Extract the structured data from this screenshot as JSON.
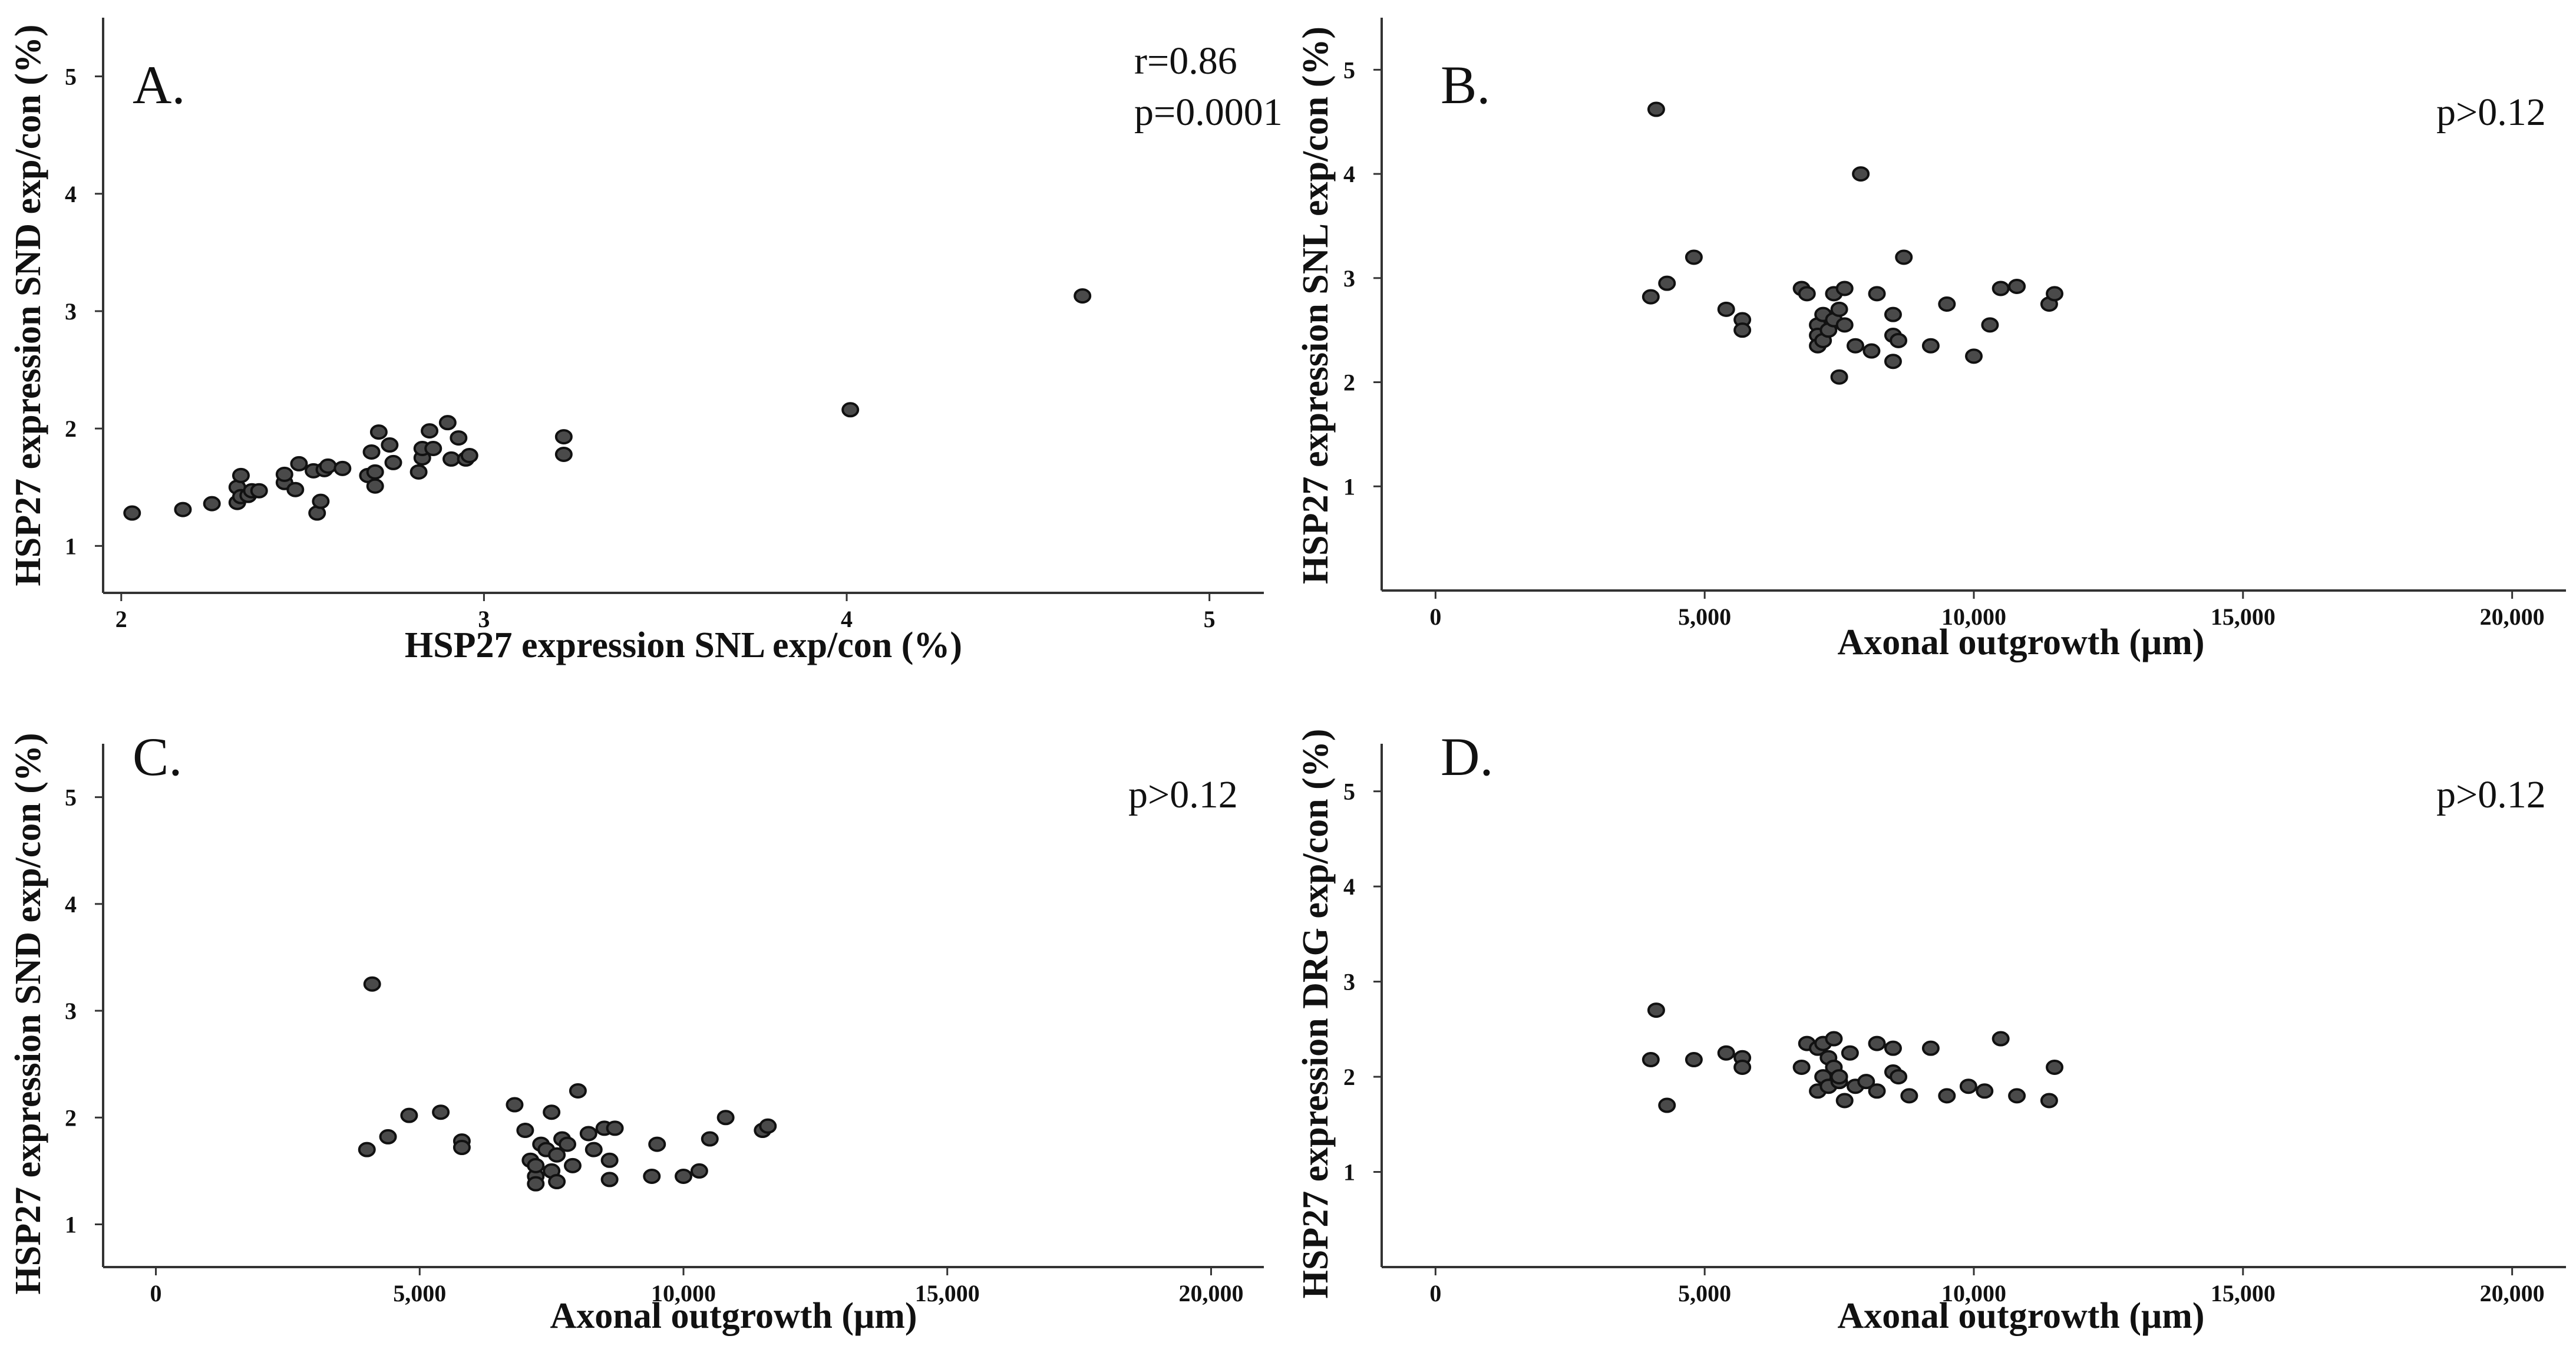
{
  "chart_data": [
    {
      "type": "scatter",
      "panel_label": "A.",
      "annotations": [
        "r=0.86",
        "p=0.0001"
      ],
      "xlabel": "HSP27 expression SNL exp/con (%)",
      "ylabel": "HSP27 expression SND exp/con (%)",
      "xlim": [
        1.95,
        5.15
      ],
      "ylim": [
        0.6,
        5.5
      ],
      "xticks": [
        2,
        3,
        4,
        5
      ],
      "xtick_labels": [
        "2",
        "3",
        "4",
        "5"
      ],
      "yticks": [
        1,
        2,
        3,
        4,
        5
      ],
      "ytick_labels": [
        "1",
        "2",
        "3",
        "4",
        "5"
      ],
      "points": [
        [
          2.03,
          1.28
        ],
        [
          2.17,
          1.31
        ],
        [
          2.25,
          1.36
        ],
        [
          2.32,
          1.37
        ],
        [
          2.32,
          1.5
        ],
        [
          2.33,
          1.42
        ],
        [
          2.33,
          1.6
        ],
        [
          2.35,
          1.43
        ],
        [
          2.36,
          1.47
        ],
        [
          2.38,
          1.47
        ],
        [
          2.45,
          1.54
        ],
        [
          2.45,
          1.61
        ],
        [
          2.48,
          1.48
        ],
        [
          2.49,
          1.7
        ],
        [
          2.53,
          1.64
        ],
        [
          2.54,
          1.28
        ],
        [
          2.55,
          1.38
        ],
        [
          2.56,
          1.65
        ],
        [
          2.57,
          1.68
        ],
        [
          2.61,
          1.66
        ],
        [
          2.68,
          1.6
        ],
        [
          2.69,
          1.8
        ],
        [
          2.7,
          1.51
        ],
        [
          2.7,
          1.63
        ],
        [
          2.71,
          1.97
        ],
        [
          2.74,
          1.86
        ],
        [
          2.75,
          1.71
        ],
        [
          2.82,
          1.63
        ],
        [
          2.83,
          1.75
        ],
        [
          2.83,
          1.83
        ],
        [
          2.85,
          1.98
        ],
        [
          2.86,
          1.83
        ],
        [
          2.9,
          2.05
        ],
        [
          2.91,
          1.74
        ],
        [
          2.93,
          1.92
        ],
        [
          2.95,
          1.74
        ],
        [
          2.96,
          1.77
        ],
        [
          3.22,
          1.78
        ],
        [
          3.22,
          1.93
        ],
        [
          4.01,
          2.16
        ],
        [
          4.65,
          3.13
        ]
      ]
    },
    {
      "type": "scatter",
      "panel_label": "B.",
      "annotations": [
        "p>0.12"
      ],
      "xlabel": "Axonal outgrowth (μm)",
      "ylabel": "HSP27 expression SNL exp/con (%)",
      "xlim": [
        -1000,
        21000
      ],
      "ylim": [
        0,
        5.5
      ],
      "xticks": [
        0,
        5000,
        10000,
        15000,
        20000
      ],
      "xtick_labels": [
        "0",
        "5,000",
        "10,000",
        "15,000",
        "20,000"
      ],
      "yticks": [
        1,
        2,
        3,
        4,
        5
      ],
      "ytick_labels": [
        "1",
        "2",
        "3",
        "4",
        "5"
      ],
      "points": [
        [
          4000,
          2.82
        ],
        [
          4100,
          4.62
        ],
        [
          4300,
          2.95
        ],
        [
          4800,
          3.2
        ],
        [
          5400,
          2.7
        ],
        [
          5700,
          2.6
        ],
        [
          5700,
          2.5
        ],
        [
          6800,
          2.9
        ],
        [
          6900,
          2.85
        ],
        [
          7100,
          2.55
        ],
        [
          7100,
          2.45
        ],
        [
          7100,
          2.35
        ],
        [
          7200,
          2.65
        ],
        [
          7200,
          2.4
        ],
        [
          7300,
          2.5
        ],
        [
          7400,
          2.85
        ],
        [
          7400,
          2.6
        ],
        [
          7500,
          2.05
        ],
        [
          7500,
          2.7
        ],
        [
          7600,
          2.55
        ],
        [
          7600,
          2.9
        ],
        [
          7800,
          2.35
        ],
        [
          7900,
          4.0
        ],
        [
          8100,
          2.3
        ],
        [
          8200,
          2.85
        ],
        [
          8500,
          2.65
        ],
        [
          8500,
          2.45
        ],
        [
          8500,
          2.2
        ],
        [
          8600,
          2.4
        ],
        [
          8700,
          3.2
        ],
        [
          9200,
          2.35
        ],
        [
          9500,
          2.75
        ],
        [
          10000,
          2.25
        ],
        [
          10300,
          2.55
        ],
        [
          10500,
          2.9
        ],
        [
          10800,
          2.92
        ],
        [
          11400,
          2.75
        ],
        [
          11500,
          2.85
        ]
      ]
    },
    {
      "type": "scatter",
      "panel_label": "C.",
      "annotations": [
        "p>0.12"
      ],
      "xlabel": "Axonal outgrowth (μm)",
      "ylabel": "HSP27 expression SND exp/con (%)",
      "xlim": [
        -1000,
        21000
      ],
      "ylim": [
        0.6,
        5.5
      ],
      "xticks": [
        0,
        5000,
        10000,
        15000,
        20000
      ],
      "xtick_labels": [
        "0",
        "5,000",
        "10,000",
        "15,000",
        "20,000"
      ],
      "yticks": [
        1,
        2,
        3,
        4,
        5
      ],
      "ytick_labels": [
        "1",
        "2",
        "3",
        "4",
        "5"
      ],
      "points": [
        [
          4000,
          1.7
        ],
        [
          4100,
          3.25
        ],
        [
          4400,
          1.82
        ],
        [
          4800,
          2.02
        ],
        [
          5400,
          2.05
        ],
        [
          5800,
          1.78
        ],
        [
          5800,
          1.72
        ],
        [
          6800,
          2.12
        ],
        [
          7000,
          1.88
        ],
        [
          7100,
          1.6
        ],
        [
          7200,
          1.45
        ],
        [
          7200,
          1.55
        ],
        [
          7200,
          1.38
        ],
        [
          7300,
          1.75
        ],
        [
          7400,
          1.7
        ],
        [
          7500,
          1.5
        ],
        [
          7500,
          2.05
        ],
        [
          7600,
          1.65
        ],
        [
          7600,
          1.4
        ],
        [
          7700,
          1.8
        ],
        [
          7800,
          1.75
        ],
        [
          7900,
          1.55
        ],
        [
          8000,
          2.25
        ],
        [
          8200,
          1.85
        ],
        [
          8300,
          1.7
        ],
        [
          8500,
          1.9
        ],
        [
          8600,
          1.6
        ],
        [
          8600,
          1.42
        ],
        [
          8700,
          1.9
        ],
        [
          9400,
          1.45
        ],
        [
          9500,
          1.75
        ],
        [
          10000,
          1.45
        ],
        [
          10300,
          1.5
        ],
        [
          10500,
          1.8
        ],
        [
          10800,
          2.0
        ],
        [
          11500,
          1.88
        ],
        [
          11600,
          1.92
        ]
      ]
    },
    {
      "type": "scatter",
      "panel_label": "D.",
      "annotations": [
        "p>0.12"
      ],
      "xlabel": "Axonal outgrowth (μm)",
      "ylabel": "HSP27 expression DRG exp/con (%)",
      "xlim": [
        -1000,
        21000
      ],
      "ylim": [
        0,
        5.5
      ],
      "xticks": [
        0,
        5000,
        10000,
        15000,
        20000
      ],
      "xtick_labels": [
        "0",
        "5,000",
        "10,000",
        "15,000",
        "20,000"
      ],
      "yticks": [
        1,
        2,
        3,
        4,
        5
      ],
      "ytick_labels": [
        "1",
        "2",
        "3",
        "4",
        "5"
      ],
      "points": [
        [
          4000,
          2.18
        ],
        [
          4100,
          2.7
        ],
        [
          4300,
          1.7
        ],
        [
          4800,
          2.18
        ],
        [
          5400,
          2.25
        ],
        [
          5700,
          2.2
        ],
        [
          5700,
          2.1
        ],
        [
          6800,
          2.1
        ],
        [
          6900,
          2.35
        ],
        [
          7100,
          1.85
        ],
        [
          7100,
          2.3
        ],
        [
          7200,
          2.0
        ],
        [
          7200,
          2.35
        ],
        [
          7300,
          1.9
        ],
        [
          7300,
          2.2
        ],
        [
          7400,
          2.1
        ],
        [
          7400,
          2.4
        ],
        [
          7500,
          1.95
        ],
        [
          7500,
          2.0
        ],
        [
          7600,
          1.75
        ],
        [
          7700,
          2.25
        ],
        [
          7800,
          1.9
        ],
        [
          8000,
          1.95
        ],
        [
          8200,
          1.85
        ],
        [
          8200,
          2.35
        ],
        [
          8500,
          2.05
        ],
        [
          8500,
          2.3
        ],
        [
          8600,
          2.0
        ],
        [
          8800,
          1.8
        ],
        [
          9200,
          2.3
        ],
        [
          9500,
          1.8
        ],
        [
          9900,
          1.9
        ],
        [
          10200,
          1.85
        ],
        [
          10500,
          2.4
        ],
        [
          10800,
          1.8
        ],
        [
          11400,
          1.75
        ],
        [
          11500,
          2.1
        ]
      ]
    }
  ]
}
